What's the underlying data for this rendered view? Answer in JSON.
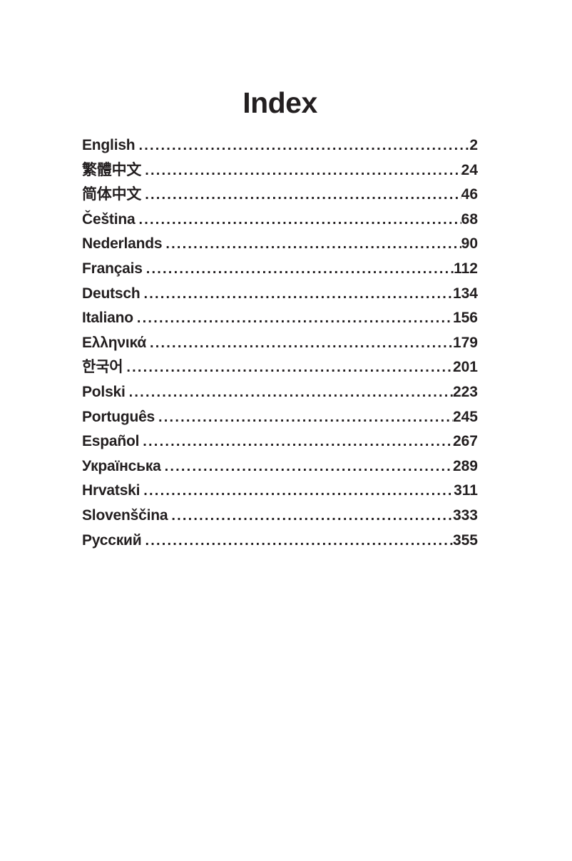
{
  "page": {
    "background": "#ffffff",
    "text_color": "#231f20"
  },
  "title": "Index",
  "toc": {
    "leader_char": ".",
    "entries": [
      {
        "label": "English",
        "page": "2"
      },
      {
        "label": "繁體中文",
        "page": "24"
      },
      {
        "label": "简体中文",
        "page": "46"
      },
      {
        "label": "Čeština",
        "page": "68"
      },
      {
        "label": "Nederlands",
        "page": "90"
      },
      {
        "label": "Français",
        "page": "112"
      },
      {
        "label": "Deutsch",
        "page": "134"
      },
      {
        "label": "Italiano",
        "page": "156"
      },
      {
        "label": "Ελληνικά",
        "page": "179"
      },
      {
        "label": "한국어",
        "page": "201"
      },
      {
        "label": "Polski",
        "page": "223"
      },
      {
        "label": "Português",
        "page": "245"
      },
      {
        "label": "Español",
        "page": "267"
      },
      {
        "label": "Українська",
        "page": "289"
      },
      {
        "label": "Hrvatski",
        "page": "311"
      },
      {
        "label": "Slovenščina",
        "page": "333"
      },
      {
        "label": "Русский",
        "page": "355"
      }
    ]
  }
}
